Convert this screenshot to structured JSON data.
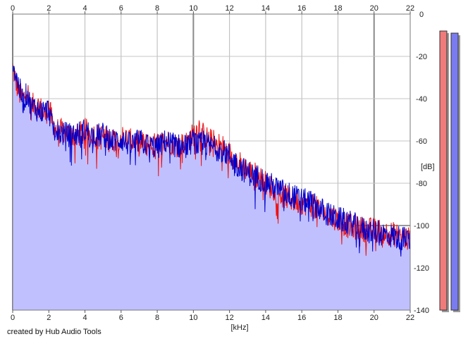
{
  "chart_data": {
    "type": "area",
    "xlabel": "[kHz]",
    "ylabel": "[dB]",
    "xlim": [
      0,
      22
    ],
    "ylim": [
      -140,
      0
    ],
    "x_ticks": [
      0,
      2,
      4,
      6,
      8,
      10,
      12,
      14,
      16,
      18,
      20,
      22
    ],
    "x_ticks_top": [
      0,
      2,
      4,
      6,
      8,
      10,
      12,
      14,
      16,
      18,
      20,
      22
    ],
    "y_ticks": [
      0,
      -20,
      -40,
      -60,
      -80,
      -100,
      -120,
      -140
    ],
    "y_tick_labels": [
      "0",
      "-20",
      "-40",
      "-60",
      "-80",
      "-100",
      "-120",
      "-140"
    ],
    "grid": true,
    "credit": "created by Hub Audio Tools",
    "series": [
      {
        "color": "#ee1111",
        "fill": "#c0c0ff",
        "x": [
          0,
          0.2,
          0.4,
          0.6,
          0.8,
          1.0,
          1.2,
          1.5,
          1.8,
          2.0,
          2.2,
          2.5,
          3.0,
          3.5,
          4.0,
          4.5,
          5.0,
          5.5,
          6.0,
          6.5,
          7.0,
          7.5,
          8.0,
          8.5,
          9.0,
          9.5,
          10.0,
          10.3,
          10.6,
          11.0,
          11.5,
          12.0,
          12.5,
          13.0,
          13.5,
          14.0,
          14.5,
          15.0,
          15.5,
          16.0,
          16.5,
          17.0,
          17.5,
          18.0,
          18.5,
          19.0,
          19.5,
          20.0,
          20.5,
          21.0,
          21.5,
          22.0
        ],
        "values": [
          -25,
          -33,
          -38,
          -40,
          -35,
          -45,
          -42,
          -44,
          -48,
          -43,
          -52,
          -55,
          -56,
          -58,
          -55,
          -57,
          -58,
          -60,
          -58,
          -60,
          -61,
          -62,
          -62,
          -60,
          -61,
          -62,
          -57,
          -53,
          -58,
          -60,
          -62,
          -66,
          -70,
          -74,
          -76,
          -80,
          -83,
          -86,
          -88,
          -89,
          -90,
          -93,
          -95,
          -97,
          -100,
          -101,
          -102,
          -102,
          -103,
          -104,
          -105,
          -107
        ]
      },
      {
        "color": "#0000cc",
        "x": [
          0,
          0.2,
          0.4,
          0.6,
          0.8,
          1.0,
          1.2,
          1.5,
          1.8,
          2.0,
          2.2,
          2.5,
          3.0,
          3.5,
          4.0,
          4.5,
          5.0,
          5.5,
          6.0,
          6.5,
          7.0,
          7.5,
          8.0,
          8.5,
          9.0,
          9.5,
          10.0,
          10.3,
          10.6,
          11.0,
          11.5,
          12.0,
          12.5,
          13.0,
          13.5,
          14.0,
          14.5,
          15.0,
          15.5,
          16.0,
          16.5,
          17.0,
          17.5,
          18.0,
          18.5,
          19.0,
          19.5,
          20.0,
          20.5,
          21.0,
          21.5,
          22.0
        ],
        "values": [
          -22,
          -30,
          -36,
          -42,
          -37,
          -44,
          -44,
          -46,
          -46,
          -45,
          -54,
          -56,
          -57,
          -57,
          -55,
          -58,
          -57,
          -60,
          -59,
          -62,
          -60,
          -62,
          -63,
          -60,
          -62,
          -63,
          -60,
          -62,
          -61,
          -63,
          -64,
          -67,
          -72,
          -75,
          -77,
          -79,
          -82,
          -84,
          -86,
          -88,
          -89,
          -92,
          -95,
          -97,
          -98,
          -100,
          -102,
          -103,
          -104,
          -105,
          -106,
          -107
        ]
      }
    ],
    "level_meters": [
      {
        "color": "#f07b7b",
        "value": -8
      },
      {
        "color": "#7b7bf0",
        "value": -9
      }
    ]
  }
}
